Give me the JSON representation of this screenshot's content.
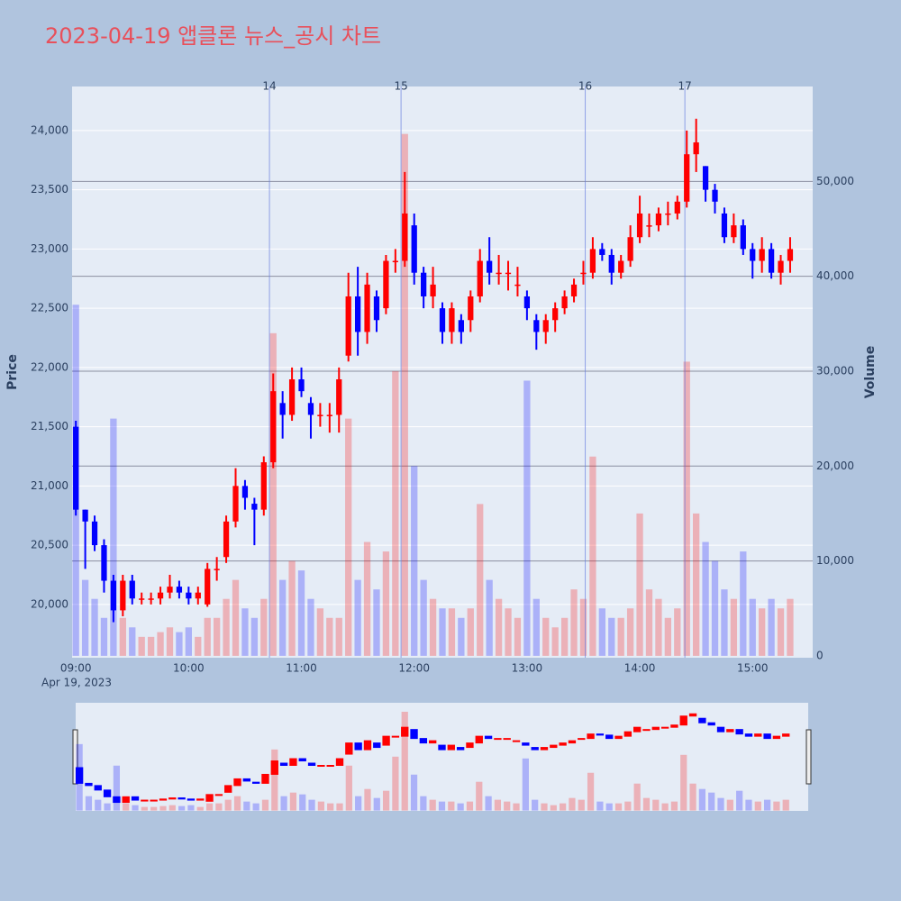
{
  "chart_data": {
    "type": "candlestick",
    "title": "2023-04-19 앱클론 뉴스_공시 차트",
    "y_title": "Price",
    "y2_title": "Volume",
    "x_date_label": "Apr 19, 2023",
    "up_color": "#ff0000",
    "down_color": "#0000ff",
    "grid": true,
    "x": [
      "09:00",
      "09:05",
      "09:10",
      "09:15",
      "09:20",
      "09:25",
      "09:30",
      "09:35",
      "09:40",
      "09:45",
      "09:50",
      "09:55",
      "10:00",
      "10:05",
      "10:10",
      "10:15",
      "10:20",
      "10:25",
      "10:30",
      "10:35",
      "10:40",
      "10:45",
      "10:50",
      "10:55",
      "11:00",
      "11:05",
      "11:10",
      "11:15",
      "11:20",
      "11:25",
      "11:30",
      "11:35",
      "11:40",
      "11:45",
      "11:50",
      "11:55",
      "12:00",
      "12:05",
      "12:10",
      "12:15",
      "12:20",
      "12:25",
      "12:30",
      "12:35",
      "12:40",
      "12:45",
      "12:50",
      "12:55",
      "13:00",
      "13:05",
      "13:10",
      "13:15",
      "13:20",
      "13:25",
      "13:30",
      "13:35",
      "13:40",
      "13:45",
      "13:50",
      "13:55",
      "14:00",
      "14:05",
      "14:10",
      "14:15",
      "14:20",
      "14:25",
      "14:30",
      "14:35",
      "14:40",
      "14:45",
      "14:50",
      "14:55",
      "15:00",
      "15:05",
      "15:10",
      "15:15",
      "15:20"
    ],
    "open": [
      21500,
      20800,
      20700,
      20500,
      20200,
      19950,
      20200,
      20050,
      20050,
      20050,
      20100,
      20150,
      20100,
      20050,
      20000,
      20300,
      20400,
      20700,
      21000,
      20850,
      20800,
      21200,
      21700,
      21600,
      21900,
      21700,
      21600,
      21600,
      21600,
      22100,
      22600,
      22300,
      22600,
      22500,
      22900,
      22900,
      23200,
      22800,
      22600,
      22500,
      22300,
      22400,
      22400,
      22600,
      22900,
      22800,
      22800,
      22700,
      22600,
      22400,
      22300,
      22400,
      22500,
      22600,
      22800,
      22800,
      23000,
      22950,
      22800,
      22900,
      23100,
      23200,
      23200,
      23300,
      23300,
      23400,
      23800,
      23700,
      23500,
      23300,
      23100,
      23200,
      23000,
      22900,
      23000,
      22800,
      22900
    ],
    "high": [
      21550,
      20800,
      20750,
      20550,
      20250,
      20250,
      20250,
      20100,
      20100,
      20150,
      20250,
      20200,
      20150,
      20150,
      20350,
      20400,
      20750,
      21150,
      21050,
      20900,
      21250,
      21950,
      21800,
      22000,
      22000,
      21750,
      21700,
      21700,
      22000,
      22800,
      22850,
      22800,
      22650,
      22950,
      23000,
      23650,
      23300,
      22850,
      22850,
      22550,
      22550,
      22450,
      22650,
      23000,
      23100,
      22950,
      22900,
      22850,
      22650,
      22450,
      22450,
      22550,
      22650,
      22750,
      22900,
      23100,
      23050,
      23000,
      22950,
      23200,
      23450,
      23300,
      23350,
      23400,
      23450,
      24000,
      24100,
      23700,
      23550,
      23350,
      23300,
      23250,
      23050,
      23100,
      23050,
      22950,
      23100
    ],
    "low": [
      20750,
      20300,
      20450,
      20100,
      19850,
      19900,
      20000,
      20000,
      20000,
      20000,
      20050,
      20050,
      20000,
      20000,
      19980,
      20200,
      20350,
      20650,
      20800,
      20500,
      20750,
      21150,
      21400,
      21550,
      21750,
      21400,
      21500,
      21450,
      21450,
      22050,
      22100,
      22200,
      22300,
      22450,
      22800,
      22850,
      22700,
      22500,
      22500,
      22200,
      22200,
      22200,
      22300,
      22550,
      22700,
      22700,
      22650,
      22600,
      22400,
      22150,
      22200,
      22300,
      22450,
      22550,
      22700,
      22750,
      22900,
      22700,
      22750,
      22850,
      23050,
      23100,
      23150,
      23200,
      23250,
      23350,
      23650,
      23400,
      23300,
      23050,
      23050,
      22950,
      22750,
      22800,
      22750,
      22700,
      22800
    ],
    "close": [
      20800,
      20700,
      20500,
      20200,
      19950,
      20200,
      20050,
      20050,
      20050,
      20100,
      20150,
      20100,
      20050,
      20100,
      20300,
      20300,
      20700,
      21000,
      20900,
      20800,
      21200,
      21800,
      21600,
      21900,
      21800,
      21600,
      21600,
      21600,
      21900,
      22600,
      22300,
      22700,
      22400,
      22900,
      22900,
      23300,
      22800,
      22600,
      22700,
      22300,
      22500,
      22300,
      22600,
      22900,
      22800,
      22800,
      22800,
      22700,
      22500,
      22300,
      22400,
      22500,
      22600,
      22700,
      22800,
      23000,
      22950,
      22800,
      22900,
      23100,
      23300,
      23200,
      23300,
      23300,
      23400,
      23800,
      23900,
      23500,
      23400,
      23100,
      23200,
      23000,
      22900,
      23000,
      22800,
      22900,
      23000
    ],
    "volume": [
      37000,
      8000,
      6000,
      4000,
      25000,
      4000,
      3000,
      2000,
      2000,
      2500,
      3000,
      2500,
      3000,
      2000,
      4000,
      4000,
      6000,
      8000,
      5000,
      4000,
      6000,
      34000,
      8000,
      10000,
      9000,
      6000,
      5000,
      4000,
      4000,
      25000,
      8000,
      12000,
      7000,
      11000,
      30000,
      55000,
      20000,
      8000,
      6000,
      5000,
      5000,
      4000,
      5000,
      16000,
      8000,
      6000,
      5000,
      4000,
      29000,
      6000,
      4000,
      3000,
      4000,
      7000,
      6000,
      21000,
      5000,
      4000,
      4000,
      5000,
      15000,
      7000,
      6000,
      4000,
      5000,
      31000,
      15000,
      12000,
      10000,
      7000,
      6000,
      11000,
      6000,
      5000,
      6000,
      5000,
      6000
    ],
    "xlim": [
      "08:58",
      "15:32"
    ],
    "xticks": [
      "09:00",
      "10:00",
      "11:00",
      "12:00",
      "13:00",
      "14:00",
      "15:00"
    ],
    "ylim": [
      19550,
      24372
    ],
    "yticks": [
      {
        "value": 20000,
        "label": "20,000"
      },
      {
        "value": 20500,
        "label": "20,500"
      },
      {
        "value": 21000,
        "label": "21,000"
      },
      {
        "value": 21500,
        "label": "21,500"
      },
      {
        "value": 22000,
        "label": "22,000"
      },
      {
        "value": 22500,
        "label": "22,500"
      },
      {
        "value": 23000,
        "label": "23,000"
      },
      {
        "value": 23500,
        "label": "23,500"
      },
      {
        "value": 24000,
        "label": "24,000"
      }
    ],
    "y2lim": [
      -200,
      60000
    ],
    "y2ticks": [
      0,
      {
        "value": 10000,
        "label": "10,000"
      },
      {
        "value": 20000,
        "label": "20,000"
      },
      {
        "value": 30000,
        "label": "30,000"
      },
      {
        "value": 40000,
        "label": "40,000"
      },
      {
        "value": 50000,
        "label": "50,000"
      }
    ],
    "news": [
      {
        "x": "10:43",
        "label": "14"
      },
      {
        "x": "11:53",
        "label": "15"
      },
      {
        "x": "13:31",
        "label": "16"
      },
      {
        "x": "14:24",
        "label": "17"
      }
    ]
  }
}
